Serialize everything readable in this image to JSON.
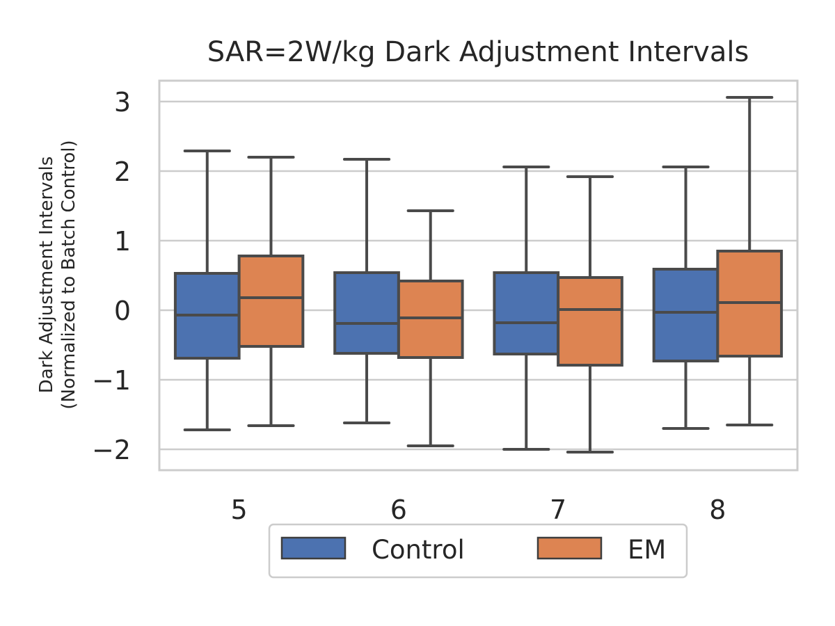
{
  "chart_data": {
    "type": "box",
    "title": "SAR=2W/kg Dark Adjustment Intervals",
    "xlabel": "",
    "ylabel_line1": "Dark Adjustment Intervals",
    "ylabel_line2": "(Normalized to Batch Control)",
    "categories": [
      "5",
      "6",
      "7",
      "8"
    ],
    "ylim": [
      -2.3,
      3.3
    ],
    "yticks": [
      3,
      2,
      1,
      0,
      -1,
      -2
    ],
    "ytick_labels": [
      "3",
      "2",
      "1",
      "0",
      "−1",
      "−2"
    ],
    "grid": true,
    "legend_position": "bottom-center",
    "series": [
      {
        "name": "Control",
        "color": "#4c72b0",
        "boxes": [
          {
            "whislo": -1.72,
            "q1": -0.69,
            "med": -0.07,
            "q3": 0.53,
            "whishi": 2.29
          },
          {
            "whislo": -1.62,
            "q1": -0.62,
            "med": -0.19,
            "q3": 0.54,
            "whishi": 2.17
          },
          {
            "whislo": -2.0,
            "q1": -0.63,
            "med": -0.18,
            "q3": 0.54,
            "whishi": 2.06
          },
          {
            "whislo": -1.7,
            "q1": -0.73,
            "med": -0.03,
            "q3": 0.59,
            "whishi": 2.06
          }
        ]
      },
      {
        "name": "EM",
        "color": "#dd8452",
        "boxes": [
          {
            "whislo": -1.66,
            "q1": -0.52,
            "med": 0.18,
            "q3": 0.78,
            "whishi": 2.2
          },
          {
            "whislo": -1.95,
            "q1": -0.68,
            "med": -0.11,
            "q3": 0.42,
            "whishi": 1.43
          },
          {
            "whislo": -2.04,
            "q1": -0.79,
            "med": 0.01,
            "q3": 0.47,
            "whishi": 1.92
          },
          {
            "whislo": -1.65,
            "q1": -0.66,
            "med": 0.11,
            "q3": 0.85,
            "whishi": 3.06
          }
        ]
      }
    ]
  }
}
